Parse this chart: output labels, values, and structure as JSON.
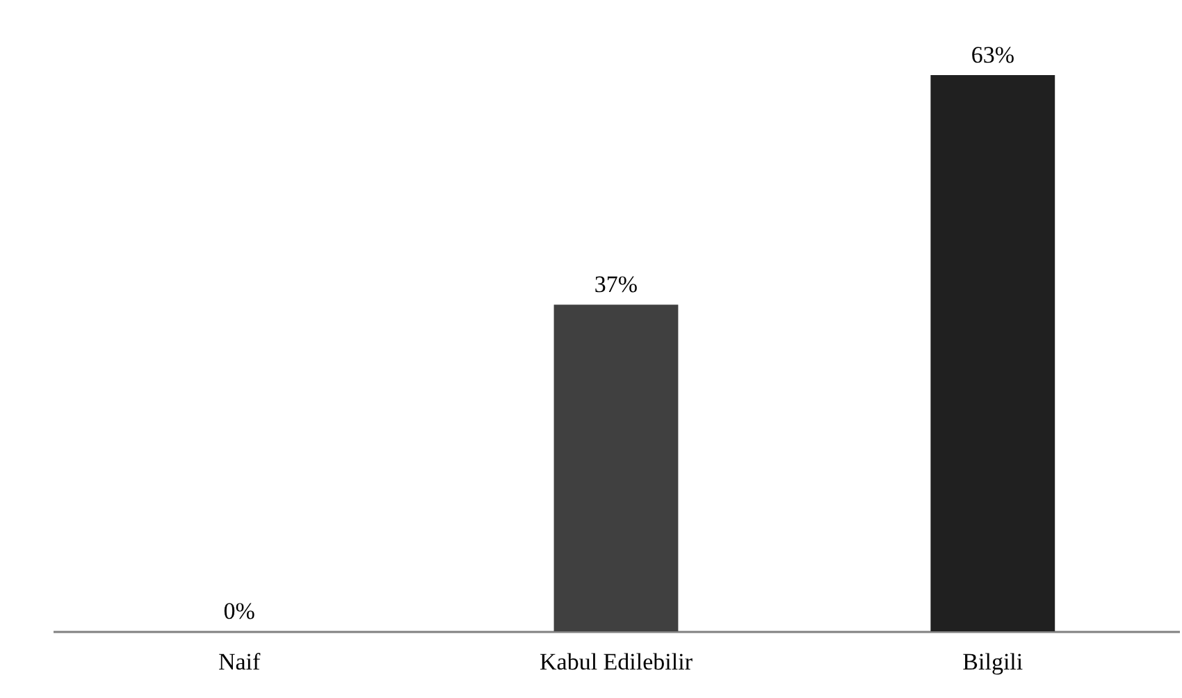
{
  "chart_data": {
    "type": "bar",
    "categories": [
      "Naif",
      "Kabul Edilebilir",
      "Bilgili"
    ],
    "values": [
      0,
      37,
      63
    ],
    "colors": [
      "#000000",
      "#404040",
      "#202020"
    ],
    "value_labels": [
      "0%",
      "37%",
      "63%"
    ]
  }
}
